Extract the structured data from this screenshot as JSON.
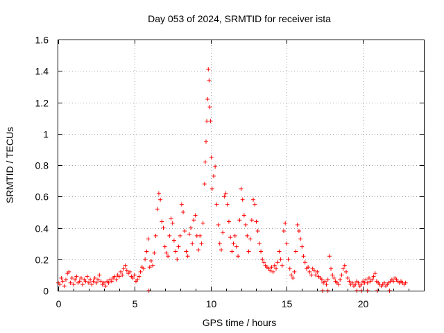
{
  "chart_data": {
    "type": "scatter",
    "title": "Day 053 of 2024, SRMTID for receiver ista",
    "xlabel": "GPS time / hours",
    "ylabel": "SRMTID / TECUs",
    "xlim": [
      0,
      24
    ],
    "ylim": [
      0,
      1.6
    ],
    "xticks": [
      0,
      5,
      10,
      15,
      20
    ],
    "xtick_labels": [
      "0",
      "5",
      "10",
      "15",
      "20"
    ],
    "yticks": [
      0,
      0.2,
      0.4,
      0.6,
      0.8,
      1.0,
      1.2,
      1.4,
      1.6
    ],
    "ytick_labels": [
      "0",
      "0.2",
      "0.4",
      "0.6",
      "0.8",
      "1",
      "1.2",
      "1.4",
      "1.6"
    ],
    "grid": true,
    "marker": "+",
    "color": "#ff0000",
    "series": [
      {
        "name": "SRMTID",
        "points": [
          [
            0.0,
            0.05
          ],
          [
            0.1,
            0.04
          ],
          [
            0.2,
            0.08
          ],
          [
            0.3,
            0.06
          ],
          [
            0.4,
            0.03
          ],
          [
            0.5,
            0.07
          ],
          [
            0.6,
            0.11
          ],
          [
            0.7,
            0.12
          ],
          [
            0.8,
            0.05
          ],
          [
            0.9,
            0.08
          ],
          [
            1.0,
            0.04
          ],
          [
            1.1,
            0.07
          ],
          [
            1.2,
            0.09
          ],
          [
            1.3,
            0.05
          ],
          [
            1.4,
            0.06
          ],
          [
            1.5,
            0.08
          ],
          [
            1.6,
            0.04
          ],
          [
            1.7,
            0.07
          ],
          [
            1.8,
            0.06
          ],
          [
            1.9,
            0.09
          ],
          [
            2.0,
            0.05
          ],
          [
            2.1,
            0.07
          ],
          [
            2.2,
            0.04
          ],
          [
            2.3,
            0.06
          ],
          [
            2.4,
            0.08
          ],
          [
            2.5,
            0.05
          ],
          [
            2.6,
            0.07
          ],
          [
            2.7,
            0.1
          ],
          [
            2.8,
            0.06
          ],
          [
            2.9,
            0.04
          ],
          [
            3.0,
            0.05
          ],
          [
            3.1,
            0.03
          ],
          [
            3.2,
            0.06
          ],
          [
            3.3,
            0.05
          ],
          [
            3.4,
            0.07
          ],
          [
            3.5,
            0.06
          ],
          [
            3.6,
            0.08
          ],
          [
            3.7,
            0.09
          ],
          [
            3.8,
            0.07
          ],
          [
            3.9,
            0.1
          ],
          [
            4.0,
            0.09
          ],
          [
            4.1,
            0.12
          ],
          [
            4.2,
            0.1
          ],
          [
            4.3,
            0.14
          ],
          [
            4.4,
            0.16
          ],
          [
            4.5,
            0.13
          ],
          [
            4.6,
            0.11
          ],
          [
            4.7,
            0.12
          ],
          [
            4.8,
            0.09
          ],
          [
            4.9,
            0.08
          ],
          [
            5.0,
            0.1
          ],
          [
            5.1,
            0.06
          ],
          [
            5.2,
            0.07
          ],
          [
            5.3,
            0.09
          ],
          [
            5.4,
            0.12
          ],
          [
            5.5,
            0.15
          ],
          [
            5.6,
            0.14
          ],
          [
            5.7,
            0.2
          ],
          [
            5.8,
            0.25
          ],
          [
            5.9,
            0.33
          ],
          [
            6.0,
            0.15
          ],
          [
            6.1,
            0.19
          ],
          [
            6.2,
            0.16
          ],
          [
            6.3,
            0.24
          ],
          [
            6.4,
            0.35
          ],
          [
            6.5,
            0.52
          ],
          [
            6.6,
            0.62
          ],
          [
            6.7,
            0.58
          ],
          [
            6.8,
            0.44
          ],
          [
            6.9,
            0.4
          ],
          [
            7.0,
            0.28
          ],
          [
            7.1,
            0.24
          ],
          [
            7.2,
            0.22
          ],
          [
            7.3,
            0.35
          ],
          [
            7.4,
            0.46
          ],
          [
            7.5,
            0.43
          ],
          [
            7.6,
            0.32
          ],
          [
            7.7,
            0.25
          ],
          [
            7.8,
            0.2
          ],
          [
            7.9,
            0.28
          ],
          [
            8.0,
            0.35
          ],
          [
            8.1,
            0.55
          ],
          [
            8.2,
            0.5
          ],
          [
            8.3,
            0.38
          ],
          [
            8.4,
            0.25
          ],
          [
            8.5,
            0.22
          ],
          [
            8.6,
            0.36
          ],
          [
            8.7,
            0.4
          ],
          [
            8.8,
            0.3
          ],
          [
            8.9,
            0.45
          ],
          [
            9.0,
            0.48
          ],
          [
            9.1,
            0.35
          ],
          [
            9.2,
            0.26
          ],
          [
            9.3,
            0.35
          ],
          [
            9.4,
            0.3
          ],
          [
            9.5,
            0.43
          ],
          [
            9.6,
            0.68
          ],
          [
            9.65,
            0.82
          ],
          [
            9.7,
            0.95
          ],
          [
            9.75,
            1.08
          ],
          [
            9.8,
            1.22
          ],
          [
            9.85,
            1.41
          ],
          [
            9.9,
            1.34
          ],
          [
            9.95,
            1.17
          ],
          [
            10.0,
            1.08
          ],
          [
            10.05,
            0.85
          ],
          [
            10.1,
            0.65
          ],
          [
            10.2,
            0.73
          ],
          [
            10.3,
            0.79
          ],
          [
            10.4,
            0.55
          ],
          [
            10.5,
            0.42
          ],
          [
            10.6,
            0.3
          ],
          [
            10.7,
            0.26
          ],
          [
            10.8,
            0.37
          ],
          [
            10.9,
            0.6
          ],
          [
            11.0,
            0.62
          ],
          [
            11.1,
            0.55
          ],
          [
            11.2,
            0.44
          ],
          [
            11.3,
            0.34
          ],
          [
            11.4,
            0.25
          ],
          [
            11.5,
            0.3
          ],
          [
            11.6,
            0.35
          ],
          [
            11.7,
            0.28
          ],
          [
            11.8,
            0.22
          ],
          [
            11.9,
            0.45
          ],
          [
            12.0,
            0.65
          ],
          [
            12.1,
            0.58
          ],
          [
            12.2,
            0.48
          ],
          [
            12.3,
            0.42
          ],
          [
            12.4,
            0.35
          ],
          [
            12.5,
            0.25
          ],
          [
            12.6,
            0.33
          ],
          [
            12.7,
            0.45
          ],
          [
            12.8,
            0.58
          ],
          [
            12.9,
            0.55
          ],
          [
            13.0,
            0.44
          ],
          [
            13.1,
            0.38
          ],
          [
            13.2,
            0.3
          ],
          [
            13.3,
            0.25
          ],
          [
            13.4,
            0.2
          ],
          [
            13.5,
            0.18
          ],
          [
            13.6,
            0.16
          ],
          [
            13.7,
            0.15
          ],
          [
            13.8,
            0.14
          ],
          [
            13.9,
            0.13
          ],
          [
            14.0,
            0.15
          ],
          [
            14.1,
            0.12
          ],
          [
            14.2,
            0.16
          ],
          [
            14.3,
            0.14
          ],
          [
            14.4,
            0.18
          ],
          [
            14.5,
            0.25
          ],
          [
            14.6,
            0.2
          ],
          [
            14.7,
            0.16
          ],
          [
            14.8,
            0.38
          ],
          [
            14.9,
            0.43
          ],
          [
            15.0,
            0.3
          ],
          [
            15.1,
            0.2
          ],
          [
            15.2,
            0.14
          ],
          [
            15.3,
            0.1
          ],
          [
            15.4,
            0.08
          ],
          [
            15.5,
            0.12
          ],
          [
            15.6,
            0.25
          ],
          [
            15.7,
            0.42
          ],
          [
            15.8,
            0.38
          ],
          [
            15.9,
            0.33
          ],
          [
            16.0,
            0.28
          ],
          [
            16.1,
            0.22
          ],
          [
            16.2,
            0.18
          ],
          [
            16.3,
            0.14
          ],
          [
            16.4,
            0.15
          ],
          [
            16.5,
            0.12
          ],
          [
            16.6,
            0.1
          ],
          [
            16.7,
            0.14
          ],
          [
            16.8,
            0.13
          ],
          [
            16.9,
            0.1
          ],
          [
            17.0,
            0.12
          ],
          [
            17.1,
            0.09
          ],
          [
            17.2,
            0.08
          ],
          [
            17.3,
            0.07
          ],
          [
            17.4,
            0.05
          ],
          [
            17.5,
            0.06
          ],
          [
            17.6,
            0.04
          ],
          [
            17.7,
            0.07
          ],
          [
            17.8,
            0.22
          ],
          [
            17.9,
            0.14
          ],
          [
            18.0,
            0.1
          ],
          [
            18.1,
            0.08
          ],
          [
            18.2,
            0.06
          ],
          [
            18.3,
            0.05
          ],
          [
            18.4,
            0.04
          ],
          [
            18.5,
            0.07
          ],
          [
            18.6,
            0.1
          ],
          [
            18.7,
            0.14
          ],
          [
            18.8,
            0.16
          ],
          [
            18.9,
            0.12
          ],
          [
            19.0,
            0.08
          ],
          [
            19.1,
            0.06
          ],
          [
            19.2,
            0.04
          ],
          [
            19.3,
            0.05
          ],
          [
            19.4,
            0.03
          ],
          [
            19.5,
            0.04
          ],
          [
            19.6,
            0.06
          ],
          [
            19.7,
            0.05
          ],
          [
            19.8,
            0.03
          ],
          [
            19.9,
            0.04
          ],
          [
            20.0,
            0.06
          ],
          [
            20.1,
            0.05
          ],
          [
            20.2,
            0.07
          ],
          [
            20.3,
            0.05
          ],
          [
            20.4,
            0.08
          ],
          [
            20.5,
            0.06
          ],
          [
            20.6,
            0.07
          ],
          [
            20.7,
            0.09
          ],
          [
            20.8,
            0.11
          ],
          [
            20.9,
            0.06
          ],
          [
            21.0,
            0.05
          ],
          [
            21.1,
            0.04
          ],
          [
            21.2,
            0.03
          ],
          [
            21.3,
            0.04
          ],
          [
            21.4,
            0.05
          ],
          [
            21.5,
            0.03
          ],
          [
            21.6,
            0.04
          ],
          [
            21.7,
            0.05
          ],
          [
            21.8,
            0.06
          ],
          [
            21.9,
            0.07
          ],
          [
            22.0,
            0.06
          ],
          [
            22.1,
            0.08
          ],
          [
            22.2,
            0.07
          ],
          [
            22.3,
            0.06
          ],
          [
            22.4,
            0.05
          ],
          [
            22.5,
            0.06
          ],
          [
            22.6,
            0.05
          ],
          [
            22.7,
            0.04
          ],
          [
            22.8,
            0.05
          ],
          [
            17.35,
            0.0
          ],
          [
            17.7,
            0.0
          ],
          [
            19.6,
            0.0
          ],
          [
            19.9,
            0.0
          ],
          [
            20.3,
            0.0
          ],
          [
            20.95,
            0.0
          ],
          [
            21.75,
            0.0
          ],
          [
            5.95,
            0.0
          ]
        ]
      }
    ]
  }
}
